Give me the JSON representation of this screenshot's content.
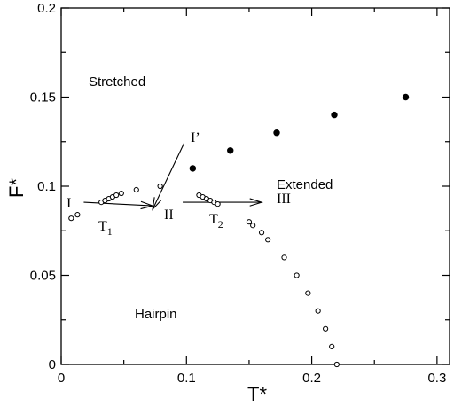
{
  "chart_data": {
    "type": "scatter",
    "xlabel": "T*",
    "ylabel": "F*",
    "xlim": [
      0,
      0.31
    ],
    "ylim": [
      0,
      0.2
    ],
    "x_ticks": [
      "0",
      "0.1",
      "0.2",
      "0.3"
    ],
    "x_tick_values": [
      0,
      0.1,
      0.2,
      0.3
    ],
    "y_ticks": [
      "0",
      "0.05",
      "0.1",
      "0.15",
      "0.2"
    ],
    "y_tick_values": [
      0,
      0.05,
      0.1,
      0.15,
      0.2
    ],
    "grid": false,
    "series": [
      {
        "marker": "open-circle",
        "points": [
          [
            0.008,
            0.082
          ],
          [
            0.013,
            0.084
          ],
          [
            0.032,
            0.091
          ],
          [
            0.035,
            0.092
          ],
          [
            0.038,
            0.093
          ],
          [
            0.041,
            0.094
          ],
          [
            0.044,
            0.095
          ],
          [
            0.048,
            0.096
          ],
          [
            0.06,
            0.098
          ],
          [
            0.079,
            0.1
          ],
          [
            0.11,
            0.095
          ],
          [
            0.113,
            0.094
          ],
          [
            0.116,
            0.093
          ],
          [
            0.119,
            0.092
          ],
          [
            0.122,
            0.091
          ],
          [
            0.125,
            0.09
          ],
          [
            0.15,
            0.08
          ],
          [
            0.153,
            0.078
          ],
          [
            0.16,
            0.074
          ],
          [
            0.165,
            0.07
          ],
          [
            0.178,
            0.06
          ],
          [
            0.188,
            0.05
          ],
          [
            0.197,
            0.04
          ],
          [
            0.205,
            0.03
          ],
          [
            0.211,
            0.02
          ],
          [
            0.216,
            0.01
          ],
          [
            0.22,
            0.0
          ]
        ]
      },
      {
        "marker": "filled-circle",
        "points": [
          [
            0.105,
            0.11
          ],
          [
            0.135,
            0.12
          ],
          [
            0.172,
            0.13
          ],
          [
            0.218,
            0.14
          ],
          [
            0.275,
            0.15
          ]
        ]
      }
    ],
    "annotations": {
      "stretched": "Stretched",
      "hairpin": "Hairpin",
      "extended": "Extended",
      "label_I": "I",
      "label_I_prime": "I’",
      "label_II": "II",
      "label_III": "III",
      "label_T": "T",
      "sub_1": "1",
      "sub_2": "2"
    },
    "arrows": [
      {
        "from": [
          0.018,
          0.091
        ],
        "to": [
          0.073,
          0.089
        ]
      },
      {
        "from": [
          0.098,
          0.124
        ],
        "to": [
          0.073,
          0.087
        ]
      },
      {
        "from": [
          0.097,
          0.091
        ],
        "to": [
          0.16,
          0.091
        ]
      }
    ]
  }
}
